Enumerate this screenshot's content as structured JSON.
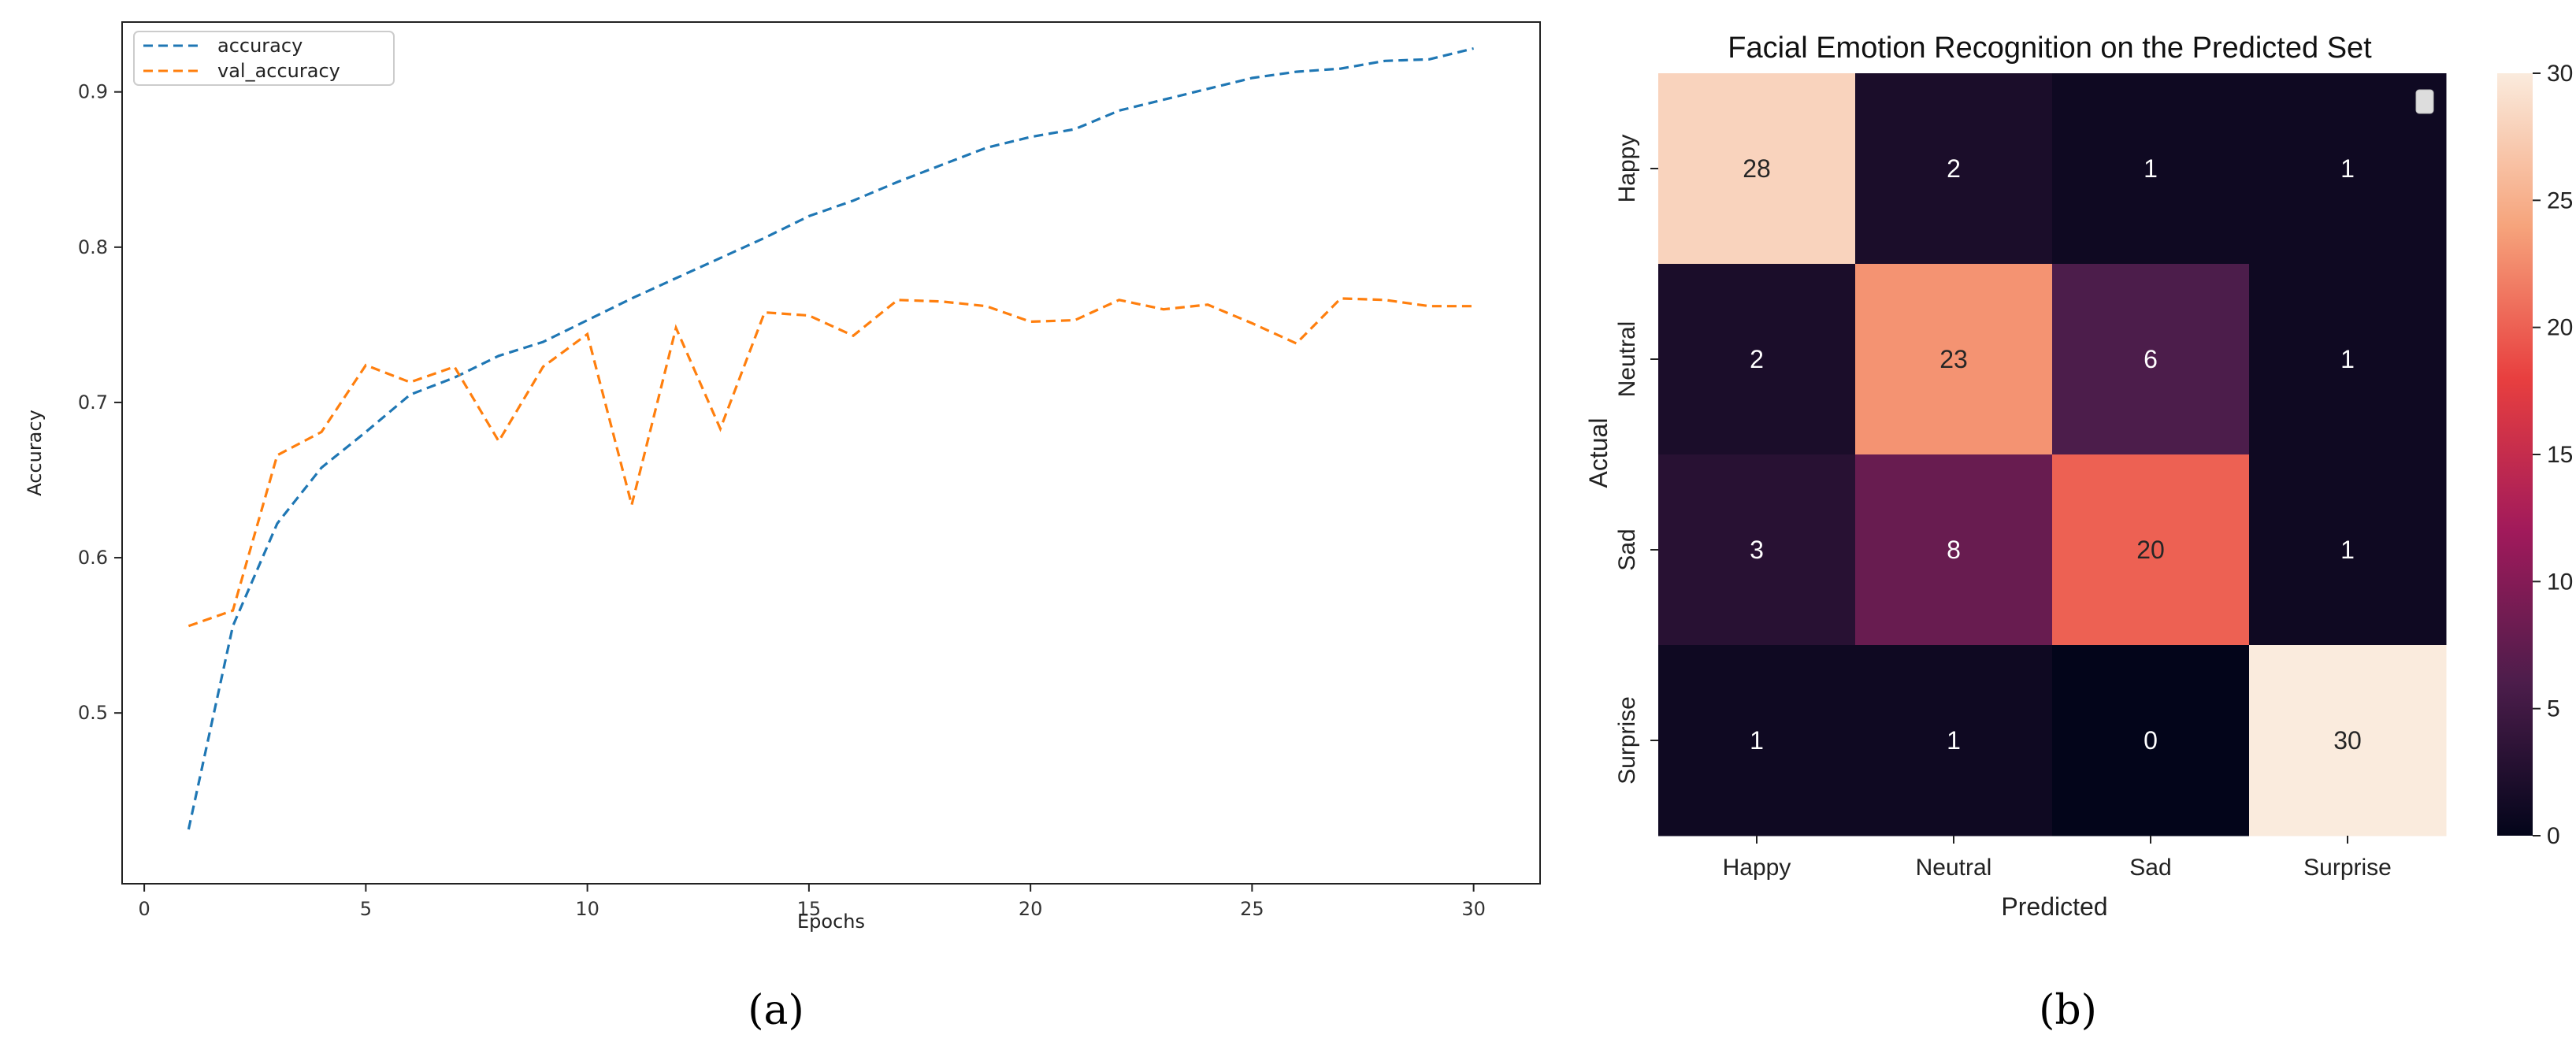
{
  "panels": {
    "a_label": "(a)",
    "b_label": "(b)"
  },
  "chart_data": [
    {
      "type": "line",
      "title": "",
      "xlabel": "Epochs",
      "ylabel": "Accuracy",
      "xlim": [
        -0.5,
        31.5
      ],
      "ylim": [
        0.39,
        0.945
      ],
      "xticks": [
        0,
        5,
        10,
        15,
        20,
        25,
        30
      ],
      "yticks": [
        0.5,
        0.6,
        0.7,
        0.8,
        0.9
      ],
      "legend_position": "top-left",
      "x": [
        1,
        2,
        3,
        4,
        5,
        6,
        7,
        8,
        9,
        10,
        11,
        12,
        13,
        14,
        15,
        16,
        17,
        18,
        19,
        20,
        21,
        22,
        23,
        24,
        25,
        26,
        27,
        28,
        29,
        30
      ],
      "series": [
        {
          "name": "accuracy",
          "color": "#1f77b4",
          "values": [
            0.425,
            0.556,
            0.622,
            0.658,
            0.681,
            0.705,
            0.716,
            0.73,
            0.739,
            0.753,
            0.767,
            0.78,
            0.793,
            0.806,
            0.82,
            0.83,
            0.842,
            0.853,
            0.864,
            0.871,
            0.876,
            0.888,
            0.895,
            0.902,
            0.909,
            0.913,
            0.915,
            0.92,
            0.921,
            0.928
          ]
        },
        {
          "name": "val_accuracy",
          "color": "#ff7f0e",
          "values": [
            0.556,
            0.566,
            0.666,
            0.681,
            0.724,
            0.713,
            0.723,
            0.675,
            0.723,
            0.744,
            0.634,
            0.748,
            0.683,
            0.758,
            0.756,
            0.743,
            0.766,
            0.765,
            0.762,
            0.752,
            0.753,
            0.766,
            0.76,
            0.763,
            0.751,
            0.738,
            0.767,
            0.766,
            0.762,
            0.762
          ]
        }
      ]
    },
    {
      "type": "heatmap",
      "title": "Facial Emotion Recognition on the Predicted Set",
      "xlabel": "Predicted",
      "ylabel": "Actual",
      "x_categories": [
        "Happy",
        "Neutral",
        "Sad",
        "Surprise"
      ],
      "y_categories": [
        "Happy",
        "Neutral",
        "Sad",
        "Surprise"
      ],
      "values": [
        [
          28,
          2,
          1,
          1
        ],
        [
          2,
          23,
          6,
          1
        ],
        [
          3,
          8,
          20,
          1
        ],
        [
          1,
          1,
          0,
          30
        ]
      ],
      "colorbar": {
        "range": [
          0,
          30
        ],
        "ticks": [
          0,
          5,
          10,
          15,
          20,
          25,
          30
        ]
      },
      "colormap": "rocket"
    }
  ]
}
